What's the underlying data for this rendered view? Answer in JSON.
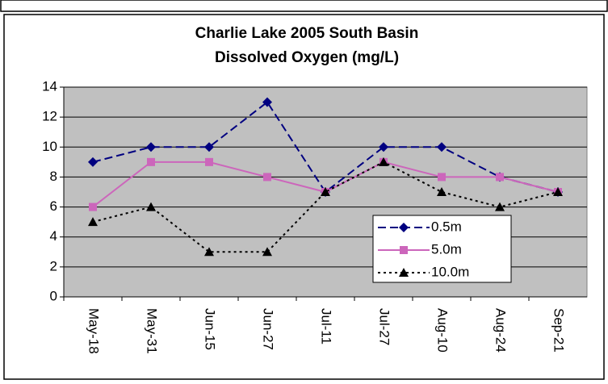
{
  "chart_data": {
    "type": "line",
    "title": "Charlie Lake 2005 South Basin",
    "subtitle": "Dissolved Oxygen (mg/L)",
    "categories": [
      "May-18",
      "May-31",
      "Jun-15",
      "Jun-27",
      "Jul-11",
      "Jul-27",
      "Aug-10",
      "Aug-24",
      "Sep-21"
    ],
    "series": [
      {
        "name": "0.5m",
        "color": "#000080",
        "dash": "dashed",
        "marker": "diamond",
        "values": [
          9,
          10,
          10,
          13,
          7,
          10,
          10,
          8,
          7
        ]
      },
      {
        "name": "5.0m",
        "color": "#cc66bb",
        "dash": "solid",
        "marker": "square",
        "values": [
          6,
          9,
          9,
          8,
          7,
          9,
          8,
          8,
          7
        ]
      },
      {
        "name": "10.0m",
        "color": "#000000",
        "dash": "dotted",
        "marker": "triangle",
        "values": [
          5,
          6,
          3,
          3,
          7,
          9,
          7,
          6,
          7
        ]
      }
    ],
    "ylim": [
      0,
      14
    ],
    "yticks": [
      0,
      2,
      4,
      6,
      8,
      10,
      12,
      14
    ],
    "grid": true,
    "legend": "lower-right",
    "plot_background": "#c0c0c0"
  }
}
